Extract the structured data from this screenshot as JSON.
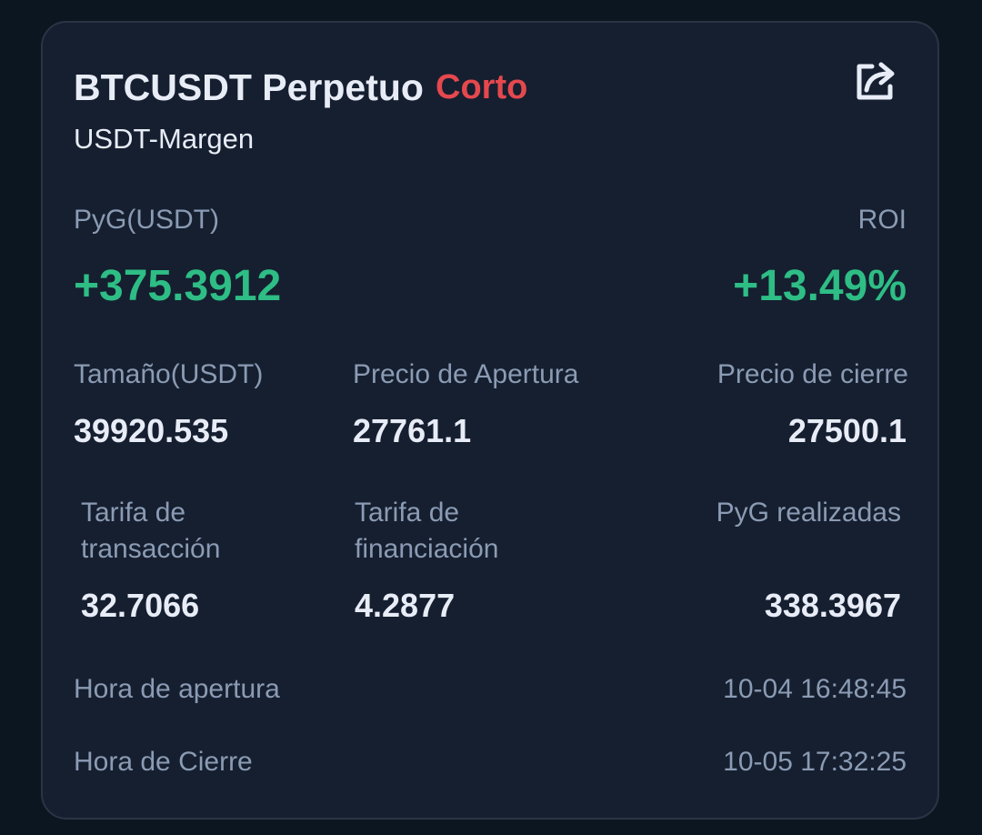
{
  "header": {
    "title": "BTCUSDT Perpetuo",
    "side": "Corto",
    "subtitle": "USDT-Margen",
    "share_icon": "share-icon"
  },
  "pnl": {
    "label": "PyG(USDT)",
    "value": "+375.3912"
  },
  "roi": {
    "label": "ROI",
    "value": "+13.49%"
  },
  "stats_row1": [
    {
      "label": "Tamaño(USDT)",
      "value": "39920.535"
    },
    {
      "label": "Precio de Apertura",
      "value": "27761.1"
    },
    {
      "label": "Precio de cierre",
      "value": "27500.1"
    }
  ],
  "stats_row2": [
    {
      "label_line1": "Tarifa de",
      "label_line2": "transacción",
      "value": "32.7066"
    },
    {
      "label_line1": "Tarifa de",
      "label_line2": "financiación",
      "value": "4.2877"
    },
    {
      "label": "PyG realizadas",
      "value": "338.3967"
    }
  ],
  "times": {
    "open_label": "Hora de apertura",
    "open_value": "10-04 16:48:45",
    "close_label": "Hora de Cierre",
    "close_value": "10-05 17:32:25"
  },
  "colors": {
    "background": "#0b1620",
    "card": "#151f30",
    "positive": "#2ebd85",
    "short": "#e5484d",
    "label": "#8b9bb3",
    "text": "#e8ecf6"
  }
}
